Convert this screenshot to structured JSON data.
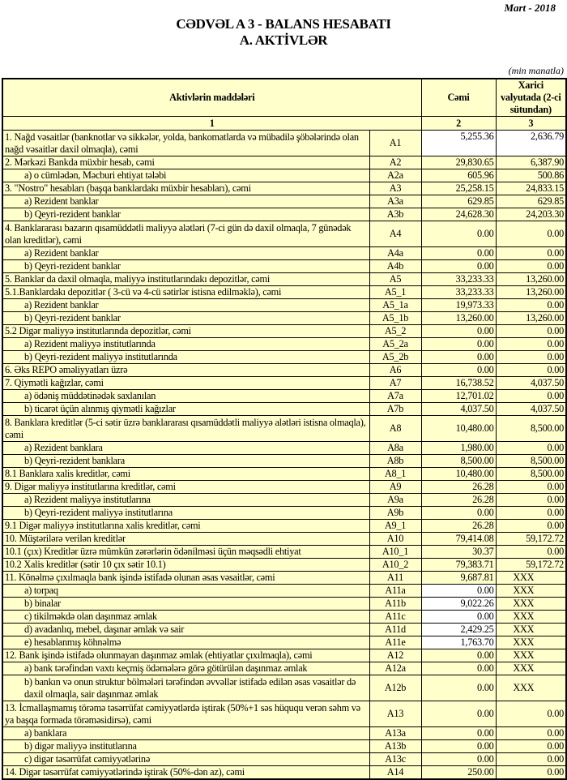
{
  "header": {
    "date": "Mart - 2018",
    "title": "CƏDVƏL A 3 - BALANS HESABATI",
    "subtitle": "A. AKTİVLƏR",
    "unit": "(min manatla)"
  },
  "table": {
    "columns": [
      "Aktivlərin   maddələri",
      "Cəmi",
      "Xarici valyutada (2-ci sütundan)"
    ],
    "column_numbers": [
      "1",
      "2",
      "3"
    ],
    "rows": [
      {
        "label": "1. Nağd vəsaitlər (banknotlar və sikkələr, yolda, bankomatlarda və mübadilə şöbələrində olan nağd vəsaitlər daxil olmaqla), cəmi",
        "code": "A1",
        "total": "5,255.36",
        "foreign": "2,636.79",
        "double": true,
        "white": true,
        "top": true
      },
      {
        "label": "2. Mərkəzi Bankda müxbir hesab, cəmi",
        "code": "A2",
        "total": "29,830.65",
        "foreign": "6,387.90"
      },
      {
        "label": "a) o cümlədən, Məcburi ehtiyat tələbi",
        "code": "A2a",
        "total": "605.96",
        "foreign": "500.86",
        "indent": true
      },
      {
        "label": "3. \"Nostro\" hesabları (başqa banklardakı müxbir hesabları), cəmi",
        "code": "A3",
        "total": "25,258.15",
        "foreign": "24,833.15"
      },
      {
        "label": "a) Rezident banklar",
        "code": "A3a",
        "total": "629.85",
        "foreign": "629.85",
        "indent": true
      },
      {
        "label": "b) Qeyri-rezident banklar",
        "code": "A3b",
        "total": "24,628.30",
        "foreign": "24,203.30",
        "indent": true
      },
      {
        "label": "4. Banklararası bazarın qısamüddətli maliyyə alətləri (7-ci gün də daxil olmaqla, 7 günədək olan kreditlər), cəmi",
        "code": "A4",
        "total": "0.00",
        "foreign": "0.00",
        "double": true
      },
      {
        "label": "a) Rezident banklar",
        "code": "A4a",
        "total": "0.00",
        "foreign": "0.00",
        "indent": true
      },
      {
        "label": "b) Qeyri-rezident banklar",
        "code": "A4b",
        "total": "0.00",
        "foreign": "0.00",
        "indent": true
      },
      {
        "label": "5. Banklar da daxil olmaqla, maliyyə institutlarındakı depozitlər, cəmi",
        "code": "A5",
        "total": "33,233.33",
        "foreign": "13,260.00"
      },
      {
        "label": "5.1.Banklardakı depozitlər ( 3-cü və 4-cü sətirlər istisna edilməklə), cəmi",
        "code": "A5_1",
        "total": "33,233.33",
        "foreign": "13,260.00"
      },
      {
        "label": "a) Rezident banklar",
        "code": "A5_1a",
        "total": "19,973.33",
        "foreign": "0.00",
        "indent": true
      },
      {
        "label": "b) Qeyri-rezident banklar",
        "code": "A5_1b",
        "total": "13,260.00",
        "foreign": "13,260.00",
        "indent": true
      },
      {
        "label": "5.2 Digər maliyyə institutlarında depozitlər, cəmi",
        "code": "A5_2",
        "total": "0.00",
        "foreign": "0.00"
      },
      {
        "label": "a) Rezident maliyyə institutlarında",
        "code": "A5_2a",
        "total": "0.00",
        "foreign": "0.00",
        "indent": true
      },
      {
        "label": "b) Qeyri-rezident maliyyə institutlarında",
        "code": "A5_2b",
        "total": "0.00",
        "foreign": "0.00",
        "indent": true
      },
      {
        "label": "6. Əks REPO əməliyyatları üzrə",
        "code": "A6",
        "total": "0.00",
        "foreign": "0.00"
      },
      {
        "label": "7. Qiymətli kağızlar, cəmi",
        "code": "A7",
        "total": "16,738.52",
        "foreign": "4,037.50"
      },
      {
        "label": "a) ödəniş müddətinədək saxlanılan",
        "code": "A7a",
        "total": "12,701.02",
        "foreign": "0.00",
        "indent": true
      },
      {
        "label": "b) ticarət üçün alınmış qiymətli kağızlar",
        "code": "A7b",
        "total": "4,037.50",
        "foreign": "4,037.50",
        "indent": true
      },
      {
        "label": "8. Banklara kreditlər (5-ci sətir üzrə banklararası qısamüddətli maliyyə alətləri istisna olmaqla), cəmi",
        "code": "A8",
        "total": "10,480.00",
        "foreign": "8,500.00",
        "double": true
      },
      {
        "label": "a) Rezident banklara",
        "code": "A8a",
        "total": "1,980.00",
        "foreign": "0.00",
        "indent": true
      },
      {
        "label": "b) Qeyri-rezident banklara",
        "code": "A8b",
        "total": "8,500.00",
        "foreign": "8,500.00",
        "indent": true
      },
      {
        "label": "8.1 Banklara xalis kreditlər, cəmi",
        "code": "A8_1",
        "total": "10,480.00",
        "foreign": "8,500.00"
      },
      {
        "label": "9. Digər maliyyə institutlarına kreditlər, cəmi",
        "code": "A9",
        "total": "26.28",
        "foreign": "0.00"
      },
      {
        "label": "a) Rezident maliyyə institutlarına",
        "code": "A9a",
        "total": "26.28",
        "foreign": "0.00",
        "indent": true
      },
      {
        "label": "b) Qeyri-rezident maliyyə institutlarına",
        "code": "A9b",
        "total": "0.00",
        "foreign": "0.00",
        "indent": true
      },
      {
        "label": "9.1 Digər maliyyə institutlarına xalis kreditlər, cəmi",
        "code": "A9_1",
        "total": "26.28",
        "foreign": "0.00"
      },
      {
        "label": "10. Müştərilərə verilən kreditlər",
        "code": "A10",
        "total": "79,414.08",
        "foreign": "59,172.72"
      },
      {
        "label": "10.1 (çıx) Kreditlər üzrə mümkün zərərlərin ödənilməsi üçün məqsədli ehtiyat",
        "code": "A10_1",
        "total": "30.37",
        "foreign": "0.00"
      },
      {
        "label": "10.2 Xalis kreditlər (sətir 10 çıx sətir 10.1)",
        "code": "A10_2",
        "total": "79,383.71",
        "foreign": "59,172.72"
      },
      {
        "label": "11. Könəlmə çıxılmaqla bank işində istifadə olunan əsas vəsaitlər, cəmi",
        "code": "A11",
        "total": "9,687.81",
        "foreign": "XXX"
      },
      {
        "label": "a) torpaq",
        "code": "A11a",
        "total": "0.00",
        "foreign": "XXX",
        "indent": true,
        "white": true
      },
      {
        "label": "b) binalar",
        "code": "A11b",
        "total": "9,022.26",
        "foreign": "XXX",
        "indent": true,
        "white": true
      },
      {
        "label": "c) tikilməkdə olan daşınmaz əmlak",
        "code": "A11c",
        "total": "0.00",
        "foreign": "XXX",
        "indent": true,
        "white": true
      },
      {
        "label": "d) avadanlıq, mebel, daşınar əmlak və sair",
        "code": "A11d",
        "total": "2,429.25",
        "foreign": "XXX",
        "indent": true,
        "white": true
      },
      {
        "label": "e) hesablanmış köhnəlmə",
        "code": "A11e",
        "total": "1,763.70",
        "foreign": "XXX",
        "indent": true,
        "white": true
      },
      {
        "label": "12. Bank işində istifadə olunmayan daşınmaz əmlak (ehtiyatlar çıxılmaqla), cəmi",
        "code": "A12",
        "total": "0.00",
        "foreign": "XXX"
      },
      {
        "label": "a) bank tərəfindən vaxtı keçmiş ödəmələrə görə götürülən daşınmaz əmlak",
        "code": "A12a",
        "total": "0.00",
        "foreign": "XXX",
        "indent": true
      },
      {
        "label": "b) bankın və onun struktur bölmələri tərəfindən əvvəllər istifadə edilən əsas vəsaitlər də daxil olmaqla, sair daşınmaz əmlak",
        "code": "A12b",
        "total": "0.00",
        "foreign": "XXX",
        "indent": true,
        "double": true
      },
      {
        "label": "13. İcmallaşmamış törəmə təsərrüfat cəmiyyətlərdə iştirak (50%+1 səs hüququ verən səhm və ya başqa formada törəməsidirsə), cəmi",
        "code": "A13",
        "total": "0.00",
        "foreign": "0.00",
        "double": true
      },
      {
        "label": "a) banklara",
        "code": "A13a",
        "total": "0.00",
        "foreign": "0.00",
        "indent": true
      },
      {
        "label": "b) digər maliyyə institutlarına",
        "code": "A13b",
        "total": "0.00",
        "foreign": "0.00",
        "indent": true
      },
      {
        "label": "c) digər təsərrüfat cəmiyyətlərinə",
        "code": "A13c",
        "total": "0.00",
        "foreign": "0.00",
        "indent": true
      },
      {
        "label": "14. Digər təsərrüfat cəmiyyətlərində iştirak (50%-dən az), cəmi",
        "code": "A14",
        "total": "250.00",
        "foreign": "0.00"
      }
    ]
  }
}
